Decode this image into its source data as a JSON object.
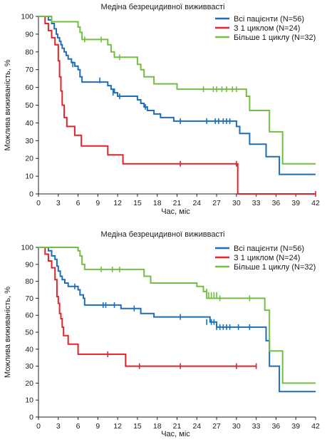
{
  "chart_data": [
    {
      "type": "line",
      "title": "Медіна безрецидивної виживвасті",
      "xlabel": "Час, міс",
      "ylabel": "Можлива виживаність, %",
      "xlim": [
        0,
        42
      ],
      "ylim": [
        0,
        100
      ],
      "xticks": [
        0,
        3,
        6,
        9,
        12,
        15,
        18,
        21,
        24,
        27,
        30,
        33,
        36,
        39,
        42
      ],
      "yticks": [
        0,
        10,
        20,
        30,
        40,
        50,
        60,
        70,
        80,
        90,
        100
      ],
      "legend_position": "top-right",
      "series": [
        {
          "name": "Всі пацієнти (N=56)",
          "color": "#1f6eb5",
          "steps": [
            [
              0,
              100
            ],
            [
              1.5,
              98
            ],
            [
              2,
              96
            ],
            [
              2.4,
              93
            ],
            [
              2.7,
              90
            ],
            [
              2.9,
              88
            ],
            [
              3.2,
              86
            ],
            [
              3.4,
              84
            ],
            [
              3.6,
              82
            ],
            [
              3.9,
              80
            ],
            [
              4.2,
              78
            ],
            [
              4.5,
              76
            ],
            [
              5,
              74
            ],
            [
              5.5,
              72
            ],
            [
              6,
              70
            ],
            [
              6.3,
              66
            ],
            [
              6.6,
              63
            ],
            [
              10.5,
              61
            ],
            [
              11,
              59
            ],
            [
              11.5,
              57
            ],
            [
              12,
              55
            ],
            [
              15,
              53
            ],
            [
              15.5,
              51
            ],
            [
              16,
              49
            ],
            [
              16.5,
              47
            ],
            [
              17.5,
              45
            ],
            [
              18.5,
              43
            ],
            [
              20.5,
              41
            ],
            [
              30,
              38
            ],
            [
              30.5,
              34
            ],
            [
              32,
              28
            ],
            [
              34.5,
              21
            ],
            [
              36.5,
              11
            ],
            [
              42,
              11
            ]
          ],
          "censors": [
            [
              5.2,
              73
            ],
            [
              9.3,
              64
            ],
            [
              11.3,
              57
            ],
            [
              12.3,
              55
            ],
            [
              16.2,
              49
            ],
            [
              21.5,
              41
            ],
            [
              25.5,
              41
            ],
            [
              26.8,
              41
            ],
            [
              27.3,
              41
            ],
            [
              28,
              41
            ],
            [
              28.5,
              41
            ],
            [
              29,
              41
            ]
          ]
        },
        {
          "name": "З 1 циклом (N=24)",
          "color": "#e0242a",
          "steps": [
            [
              0,
              100
            ],
            [
              1,
              96
            ],
            [
              1.5,
              92
            ],
            [
              2,
              88
            ],
            [
              2.5,
              84
            ],
            [
              3,
              75
            ],
            [
              3.2,
              66
            ],
            [
              3.4,
              58
            ],
            [
              3.6,
              50
            ],
            [
              3.9,
              43
            ],
            [
              4.3,
              38
            ],
            [
              5.5,
              33
            ],
            [
              6.5,
              27
            ],
            [
              10.5,
              22
            ],
            [
              12.8,
              17
            ],
            [
              30.2,
              0
            ],
            [
              42,
              0
            ]
          ],
          "censors": [
            [
              21.5,
              17
            ],
            [
              30,
              17
            ],
            [
              42,
              0
            ]
          ]
        },
        {
          "name": "Більше 1 циклу (N=32)",
          "color": "#74bd44",
          "steps": [
            [
              0,
              100
            ],
            [
              2,
              97
            ],
            [
              6,
              94
            ],
            [
              6.3,
              91
            ],
            [
              6.6,
              87
            ],
            [
              10.5,
              84
            ],
            [
              11,
              80
            ],
            [
              11.5,
              77
            ],
            [
              15,
              73
            ],
            [
              15.5,
              70
            ],
            [
              16,
              66
            ],
            [
              17.5,
              62
            ],
            [
              21,
              59
            ],
            [
              31.5,
              55
            ],
            [
              32,
              47
            ],
            [
              35,
              35
            ],
            [
              37,
              17
            ],
            [
              42,
              17
            ]
          ],
          "censors": [
            [
              7,
              87
            ],
            [
              9.5,
              87
            ],
            [
              12.3,
              77
            ],
            [
              25,
              59
            ],
            [
              26.5,
              59
            ],
            [
              27,
              59
            ],
            [
              27.8,
              59
            ],
            [
              28.5,
              59
            ],
            [
              29.4,
              59
            ],
            [
              30,
              59
            ]
          ]
        }
      ]
    },
    {
      "type": "line",
      "title": "Медіна безрецидивної виживвасті",
      "xlabel": "Час, міс",
      "ylabel": "Можлива виживаність, %",
      "xlim": [
        0,
        42
      ],
      "ylim": [
        0,
        100
      ],
      "xticks": [
        0,
        3,
        6,
        9,
        12,
        15,
        18,
        21,
        24,
        27,
        30,
        33,
        36,
        39,
        42
      ],
      "yticks": [
        0,
        10,
        20,
        30,
        40,
        50,
        60,
        70,
        80,
        90,
        100
      ],
      "legend_position": "top-right",
      "series": [
        {
          "name": "Всі пацієнти (N=56)",
          "color": "#1f6eb5",
          "steps": [
            [
              0,
              100
            ],
            [
              1.5,
              98
            ],
            [
              2,
              95
            ],
            [
              2.5,
              93
            ],
            [
              2.8,
              89
            ],
            [
              3,
              86
            ],
            [
              3.3,
              83
            ],
            [
              3.6,
              81
            ],
            [
              4,
              79
            ],
            [
              4.5,
              77
            ],
            [
              6,
              75
            ],
            [
              6.3,
              72
            ],
            [
              6.8,
              70
            ],
            [
              7,
              66
            ],
            [
              12.5,
              64
            ],
            [
              15.5,
              61
            ],
            [
              17.5,
              59
            ],
            [
              26,
              56
            ],
            [
              27,
              53
            ],
            [
              34.5,
              45
            ],
            [
              35,
              30
            ],
            [
              36.5,
              15
            ],
            [
              42,
              15
            ]
          ],
          "censors": [
            [
              5.5,
              77
            ],
            [
              9.8,
              66
            ],
            [
              10.2,
              66
            ],
            [
              11.5,
              66
            ],
            [
              14.5,
              64
            ],
            [
              21.5,
              59
            ],
            [
              25.5,
              56
            ],
            [
              26.2,
              56
            ],
            [
              26.6,
              56
            ],
            [
              27,
              53
            ],
            [
              27.5,
              53
            ],
            [
              28,
              53
            ],
            [
              28.5,
              53
            ],
            [
              29,
              53
            ],
            [
              30.3,
              53
            ],
            [
              32,
              53
            ],
            [
              34.5,
              47
            ]
          ]
        },
        {
          "name": "З 1 циклом (N=24)",
          "color": "#e0242a",
          "steps": [
            [
              0,
              100
            ],
            [
              1,
              96
            ],
            [
              1.5,
              92
            ],
            [
              2,
              88
            ],
            [
              2.5,
              81
            ],
            [
              2.8,
              71
            ],
            [
              3,
              67
            ],
            [
              3.2,
              61
            ],
            [
              3.4,
              58
            ],
            [
              3.6,
              53
            ],
            [
              3.8,
              48
            ],
            [
              4.5,
              43
            ],
            [
              6,
              37
            ],
            [
              13.2,
              30
            ],
            [
              33,
              30
            ]
          ],
          "censors": [
            [
              10.5,
              37
            ],
            [
              15.3,
              30
            ],
            [
              21.5,
              30
            ],
            [
              30,
              30
            ],
            [
              33,
              30
            ]
          ]
        },
        {
          "name": "Більше 1 циклу (N=32)",
          "color": "#74bd44",
          "steps": [
            [
              0,
              100
            ],
            [
              6,
              98
            ],
            [
              6.3,
              95
            ],
            [
              6.6,
              90
            ],
            [
              7,
              87
            ],
            [
              16,
              83
            ],
            [
              17,
              79
            ],
            [
              24,
              77
            ],
            [
              25,
              74
            ],
            [
              25.5,
              70
            ],
            [
              34.3,
              63
            ],
            [
              35,
              39
            ],
            [
              37,
              20
            ],
            [
              42,
              20
            ]
          ],
          "censors": [
            [
              9.5,
              87
            ],
            [
              11.2,
              87
            ],
            [
              12.3,
              87
            ],
            [
              25.5,
              74
            ],
            [
              25.8,
              72
            ],
            [
              26.2,
              72
            ],
            [
              26.6,
              72
            ],
            [
              27,
              72
            ],
            [
              27.5,
              70
            ],
            [
              32,
              70
            ]
          ]
        }
      ]
    }
  ]
}
